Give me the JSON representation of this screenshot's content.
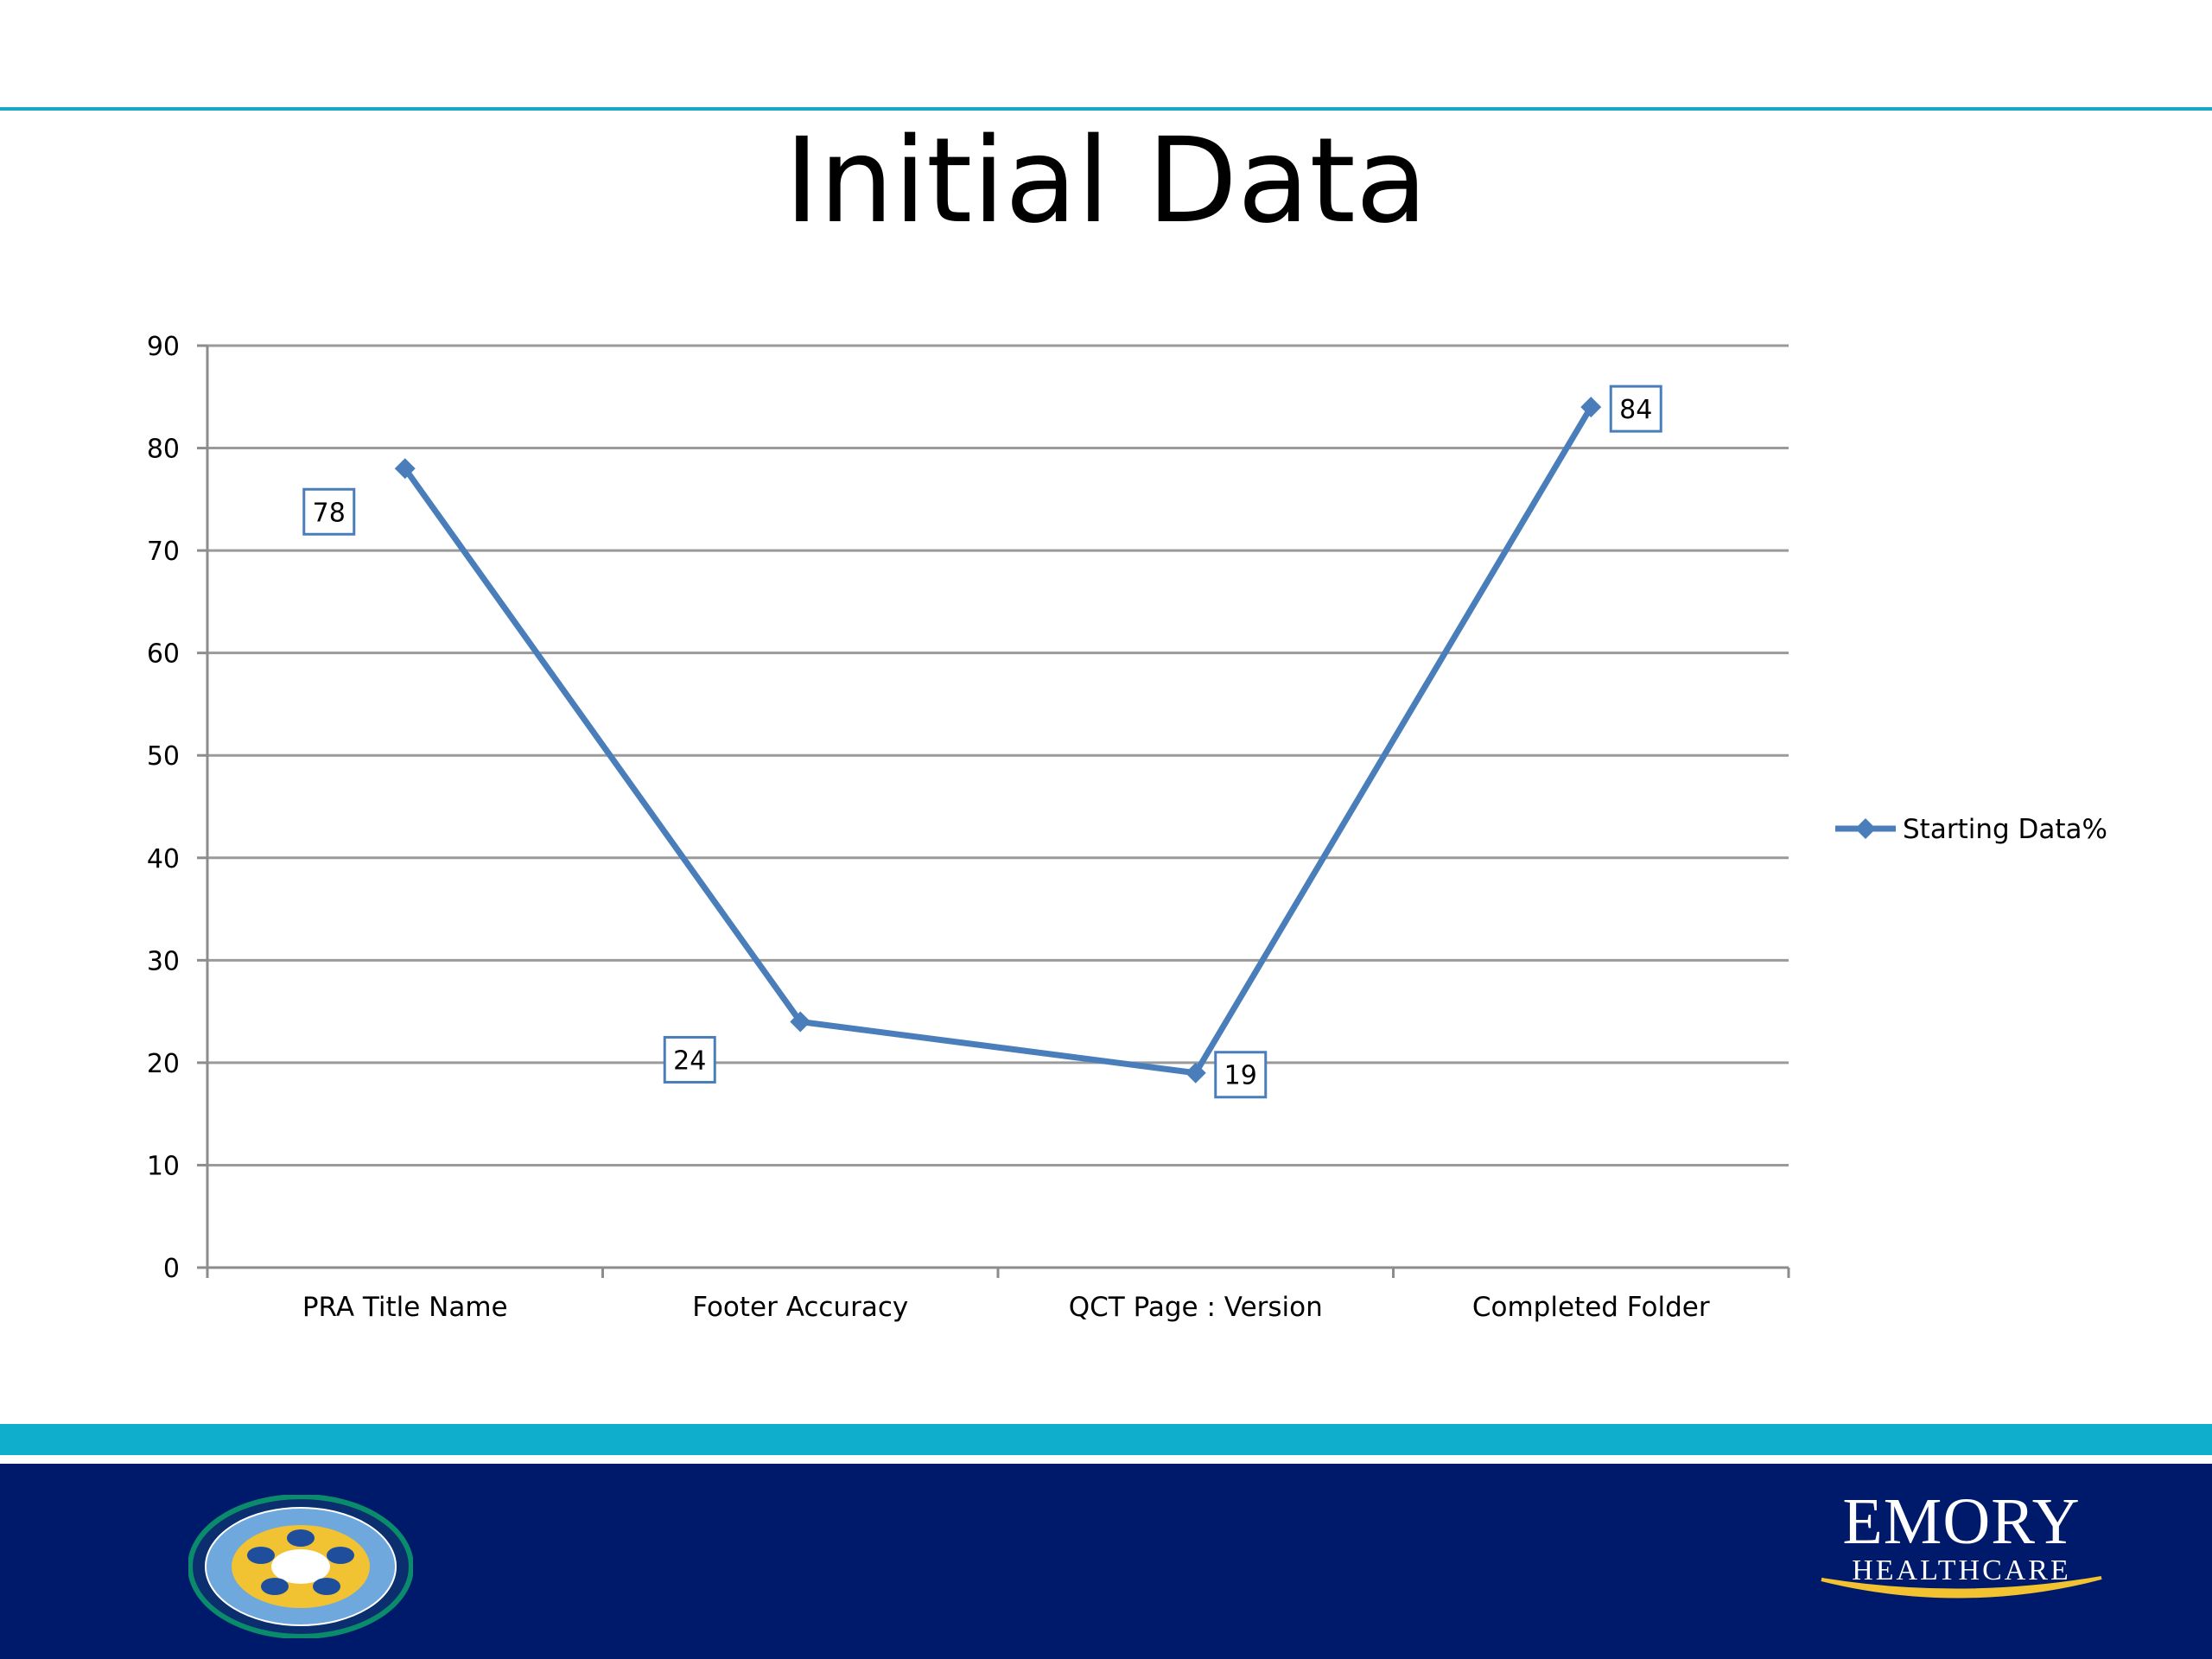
{
  "slide": {
    "title": "Initial Data"
  },
  "colors": {
    "accent_rule": "#1aa7c4",
    "series_line": "#4a7ebb",
    "footer_navy": "#001a6b",
    "footer_cyan": "#0eaecc",
    "brand_gold": "#f2c230"
  },
  "footer": {
    "seal_icon": "mission-values-seal-icon",
    "brand_name": "EMORY",
    "brand_sub": "HEALTHCARE"
  },
  "chart_data": {
    "type": "line",
    "title": "",
    "xlabel": "",
    "ylabel": "",
    "categories": [
      "PRA Title Name",
      "Footer Accuracy",
      "QCT Page : Version",
      "Completed Folder"
    ],
    "series": [
      {
        "name": "Starting Data%",
        "values": [
          78,
          24,
          19,
          84
        ],
        "marker": "diamond"
      }
    ],
    "data_labels": [
      "78",
      "24",
      "19",
      "84"
    ],
    "ylim": [
      0,
      90
    ],
    "yticks": [
      0,
      10,
      20,
      30,
      40,
      50,
      60,
      70,
      80,
      90
    ],
    "grid": true,
    "legend": "right"
  }
}
